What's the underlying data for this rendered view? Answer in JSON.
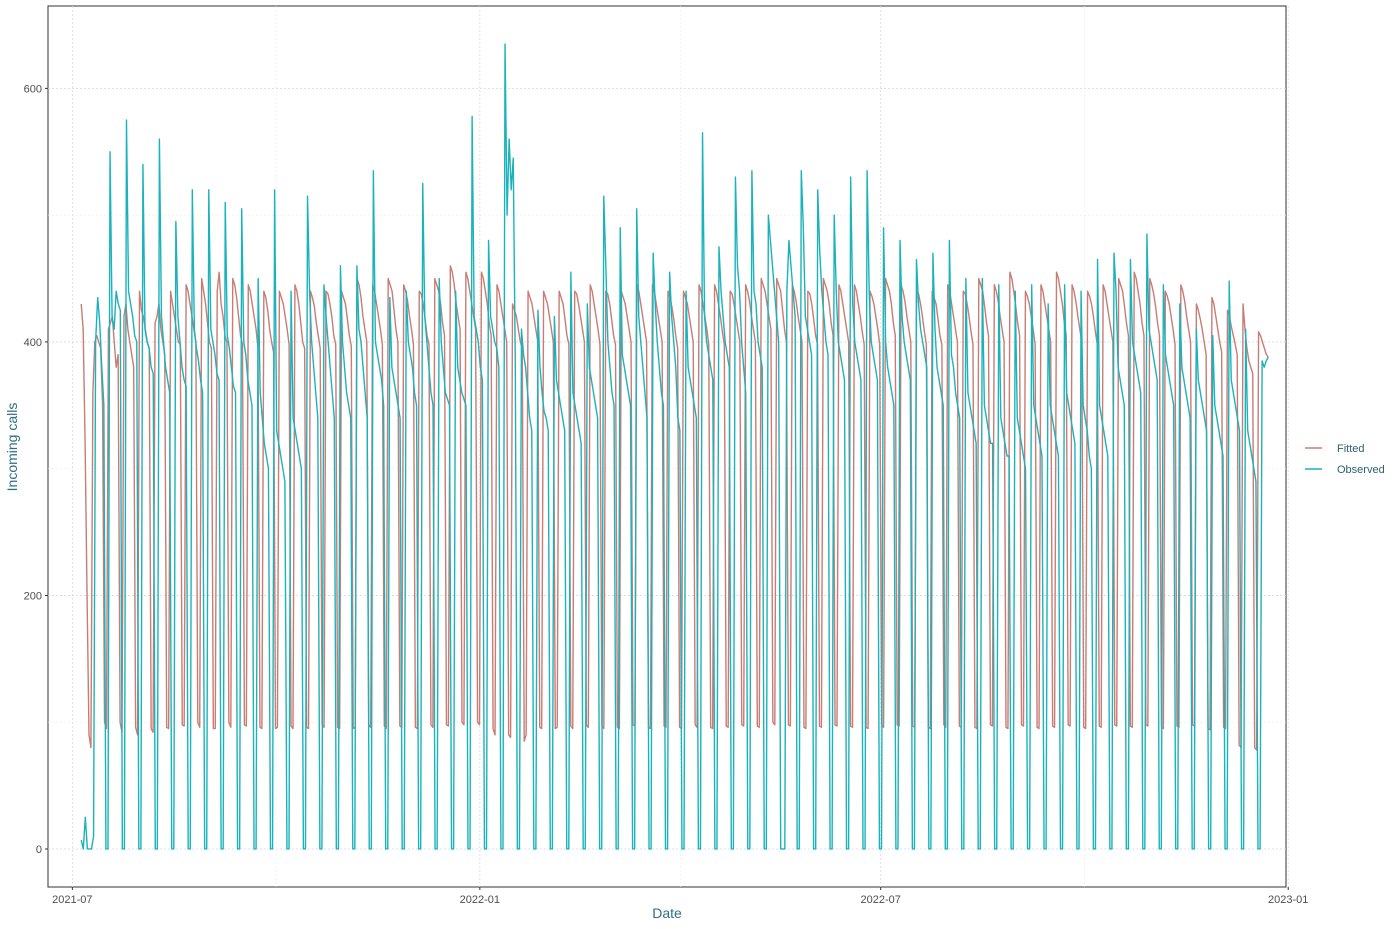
{
  "chart_data": {
    "type": "line",
    "title": "",
    "xlabel": "Date",
    "ylabel": "Incoming calls",
    "x_range": [
      "2021-06-20",
      "2022-12-31"
    ],
    "ylim": [
      -30,
      665
    ],
    "x_ticks": [
      {
        "date": "2021-07-01",
        "label": "2021-07"
      },
      {
        "date": "2022-01-01",
        "label": "2022-01"
      },
      {
        "date": "2022-07-01",
        "label": "2022-07"
      },
      {
        "date": "2023-01-01",
        "label": "2023-01"
      }
    ],
    "y_ticks": [
      0,
      200,
      400,
      600
    ],
    "grid": true,
    "legend_position": "right",
    "series_start": "2021-07-05",
    "series_end": "2022-12-23",
    "series": [
      {
        "name": "Fitted",
        "color": "#c87c73",
        "values": [
          430,
          410,
          320,
          200,
          90,
          80,
          360,
          400,
          405,
          400,
          395,
          350,
          100,
          95,
          410,
          415,
          420,
          400,
          380,
          390,
          100,
          92,
          420,
          430,
          410,
          400,
          390,
          380,
          96,
          90,
          440,
          425,
          420,
          410,
          400,
          395,
          95,
          92,
          415,
          420,
          430,
          410,
          400,
          390,
          96,
          95,
          440,
          430,
          420,
          410,
          400,
          398,
          98,
          97,
          445,
          440,
          430,
          420,
          410,
          400,
          100,
          96,
          450,
          440,
          430,
          415,
          400,
          395,
          95,
          95,
          440,
          455,
          430,
          420,
          405,
          400,
          100,
          96,
          450,
          445,
          435,
          420,
          405,
          398,
          98,
          97,
          445,
          440,
          430,
          420,
          410,
          395,
          96,
          95,
          440,
          435,
          425,
          410,
          400,
          392,
          95,
          96,
          440,
          435,
          430,
          420,
          410,
          398,
          97,
          95,
          445,
          440,
          430,
          415,
          400,
          395,
          96,
          95,
          440,
          435,
          428,
          415,
          405,
          395,
          98,
          96,
          440,
          438,
          430,
          420,
          405,
          398,
          96,
          95,
          440,
          435,
          430,
          418,
          405,
          397,
          95,
          96,
          450,
          445,
          435,
          420,
          410,
          400,
          98,
          96,
          445,
          440,
          430,
          420,
          410,
          398,
          97,
          95,
          450,
          445,
          440,
          425,
          410,
          400,
          97,
          96,
          445,
          440,
          432,
          420,
          410,
          398,
          96,
          95,
          440,
          438,
          430,
          418,
          405,
          398,
          98,
          96,
          450,
          445,
          440,
          430,
          415,
          405,
          98,
          97,
          460,
          455,
          445,
          430,
          420,
          410,
          100,
          98,
          455,
          450,
          440,
          430,
          420,
          410,
          100,
          98,
          455,
          450,
          440,
          430,
          415,
          405,
          95,
          90,
          445,
          440,
          430,
          420,
          410,
          400,
          90,
          88,
          430,
          425,
          420,
          410,
          400,
          395,
          85,
          90,
          440,
          435,
          430,
          420,
          410,
          400,
          96,
          95,
          440,
          435,
          430,
          420,
          410,
          400,
          95,
          96,
          440,
          435,
          430,
          418,
          405,
          398,
          97,
          95,
          440,
          438,
          430,
          420,
          410,
          400,
          98,
          96,
          445,
          440,
          430,
          420,
          410,
          398,
          97,
          95,
          440,
          438,
          430,
          418,
          405,
          398,
          96,
          95,
          440,
          435,
          430,
          420,
          410,
          400,
          98,
          97,
          445,
          440,
          430,
          420,
          410,
          400,
          96,
          95,
          445,
          440,
          430,
          420,
          410,
          400,
          97,
          96,
          440,
          435,
          428,
          418,
          405,
          395,
          96,
          95,
          440,
          435,
          430,
          420,
          410,
          400,
          98,
          96,
          445,
          440,
          430,
          420,
          410,
          398,
          96,
          95,
          445,
          440,
          430,
          420,
          408,
          398,
          97,
          96,
          440,
          438,
          430,
          420,
          410,
          400,
          98,
          97,
          445,
          440,
          432,
          420,
          410,
          400,
          97,
          96,
          450,
          445,
          440,
          430,
          420,
          410,
          100,
          98,
          450,
          445,
          440,
          425,
          410,
          400,
          98,
          97,
          445,
          440,
          432,
          420,
          410,
          400,
          96,
          95,
          440,
          438,
          430,
          418,
          405,
          398,
          97,
          96,
          450,
          445,
          440,
          430,
          415,
          405,
          98,
          97,
          445,
          440,
          430,
          420,
          410,
          400,
          97,
          96,
          445,
          440,
          430,
          420,
          408,
          398,
          96,
          95,
          440,
          436,
          430,
          420,
          410,
          398,
          98,
          96,
          450,
          445,
          440,
          430,
          415,
          405,
          98,
          97,
          445,
          440,
          432,
          420,
          410,
          400,
          97,
          96,
          440,
          438,
          430,
          420,
          408,
          398,
          96,
          95,
          440,
          435,
          430,
          418,
          405,
          398,
          98,
          96,
          445,
          440,
          430,
          420,
          410,
          400,
          97,
          96,
          440,
          438,
          430,
          420,
          408,
          398,
          96,
          95,
          450,
          445,
          440,
          428,
          415,
          405,
          98,
          97,
          445,
          440,
          432,
          420,
          410,
          400,
          96,
          95,
          455,
          450,
          440,
          428,
          415,
          405,
          98,
          97,
          440,
          436,
          430,
          420,
          410,
          398,
          96,
          95,
          445,
          440,
          430,
          420,
          410,
          400,
          97,
          96,
          455,
          450,
          440,
          430,
          415,
          405,
          98,
          97,
          445,
          440,
          432,
          420,
          410,
          400,
          96,
          95,
          440,
          436,
          430,
          420,
          408,
          398,
          97,
          96,
          445,
          440,
          430,
          420,
          410,
          400,
          98,
          97,
          450,
          445,
          440,
          428,
          415,
          405,
          97,
          96,
          455,
          450,
          440,
          430,
          415,
          405,
          98,
          97,
          450,
          445,
          438,
          428,
          415,
          405,
          96,
          95,
          440,
          436,
          430,
          420,
          410,
          398,
          97,
          96,
          445,
          440,
          432,
          420,
          410,
          400,
          98,
          97,
          430,
          425,
          418,
          410,
          400,
          390,
          95,
          94,
          435,
          430,
          420,
          410,
          400,
          392,
          96,
          95,
          425,
          420,
          412,
          405,
          398,
          390,
          82,
          80,
          430,
          410,
          395,
          385,
          380,
          375,
          80,
          78,
          408,
          405,
          400,
          395,
          390,
          388
        ]
      },
      {
        "name": "Observed",
        "color": "#1ab3bc",
        "values": [
          7,
          0,
          25,
          0,
          0,
          0,
          10,
          400,
          435,
          415,
          380,
          350,
          0,
          0,
          550,
          420,
          410,
          440,
          430,
          425,
          0,
          0,
          575,
          440,
          430,
          420,
          405,
          400,
          0,
          0,
          540,
          410,
          400,
          395,
          380,
          375,
          0,
          0,
          560,
          420,
          400,
          380,
          370,
          360,
          0,
          0,
          495,
          420,
          400,
          380,
          370,
          365,
          0,
          0,
          520,
          410,
          395,
          385,
          370,
          360,
          0,
          0,
          520,
          410,
          400,
          390,
          375,
          370,
          0,
          0,
          510,
          405,
          395,
          380,
          365,
          360,
          0,
          0,
          505,
          400,
          390,
          370,
          360,
          350,
          0,
          0,
          450,
          360,
          340,
          320,
          310,
          300,
          0,
          0,
          520,
          330,
          320,
          310,
          300,
          290,
          0,
          0,
          440,
          340,
          330,
          320,
          310,
          300,
          0,
          0,
          515,
          440,
          400,
          380,
          360,
          340,
          0,
          0,
          445,
          420,
          400,
          380,
          360,
          340,
          0,
          0,
          460,
          400,
          380,
          360,
          350,
          340,
          0,
          0,
          460,
          410,
          400,
          380,
          360,
          340,
          0,
          0,
          535,
          400,
          390,
          380,
          370,
          350,
          0,
          0,
          435,
          380,
          370,
          360,
          350,
          340,
          0,
          0,
          440,
          400,
          390,
          380,
          360,
          350,
          0,
          0,
          525,
          420,
          400,
          380,
          360,
          350,
          0,
          0,
          450,
          400,
          380,
          360,
          355,
          350,
          0,
          0,
          440,
          380,
          370,
          360,
          355,
          350,
          0,
          0,
          578,
          420,
          410,
          400,
          380,
          370,
          0,
          0,
          480,
          420,
          410,
          400,
          395,
          380,
          0,
          0,
          635,
          500,
          560,
          520,
          545,
          380,
          0,
          0,
          410,
          390,
          380,
          360,
          340,
          330,
          0,
          0,
          425,
          380,
          360,
          345,
          340,
          330,
          0,
          0,
          420,
          370,
          360,
          350,
          340,
          330,
          0,
          0,
          455,
          360,
          350,
          340,
          330,
          320,
          0,
          0,
          430,
          380,
          370,
          360,
          350,
          340,
          0,
          0,
          515,
          460,
          400,
          380,
          360,
          350,
          0,
          0,
          490,
          390,
          380,
          370,
          360,
          350,
          0,
          0,
          505,
          420,
          400,
          380,
          360,
          340,
          0,
          0,
          470,
          430,
          400,
          380,
          360,
          350,
          0,
          0,
          455,
          420,
          400,
          380,
          340,
          330,
          0,
          0,
          440,
          380,
          370,
          360,
          350,
          340,
          0,
          0,
          565,
          420,
          400,
          390,
          380,
          370,
          0,
          0,
          475,
          440,
          420,
          400,
          390,
          380,
          0,
          0,
          530,
          460,
          440,
          400,
          380,
          360,
          0,
          0,
          535,
          440,
          430,
          400,
          390,
          380,
          0,
          0,
          500,
          480,
          460,
          440,
          420,
          400,
          0,
          0,
          0,
          440,
          480,
          460,
          440,
          420,
          0,
          0,
          535,
          490,
          420,
          410,
          400,
          390,
          0,
          0,
          520,
          470,
          440,
          420,
          400,
          390,
          0,
          0,
          500,
          440,
          400,
          390,
          380,
          370,
          0,
          0,
          530,
          430,
          400,
          390,
          380,
          370,
          0,
          0,
          535,
          440,
          400,
          390,
          380,
          370,
          0,
          0,
          490,
          400,
          380,
          370,
          360,
          350,
          0,
          0,
          480,
          420,
          400,
          390,
          380,
          370,
          0,
          0,
          465,
          430,
          410,
          400,
          390,
          380,
          0,
          0,
          470,
          410,
          380,
          370,
          360,
          350,
          0,
          0,
          480,
          390,
          380,
          360,
          350,
          340,
          0,
          0,
          450,
          360,
          350,
          340,
          330,
          320,
          0,
          0,
          450,
          350,
          340,
          330,
          320,
          320,
          0,
          0,
          445,
          340,
          330,
          320,
          310,
          310,
          0,
          0,
          440,
          340,
          330,
          320,
          310,
          300,
          0,
          0,
          445,
          350,
          340,
          330,
          320,
          310,
          0,
          0,
          430,
          350,
          340,
          330,
          320,
          310,
          0,
          0,
          445,
          360,
          350,
          340,
          330,
          320,
          0,
          0,
          440,
          350,
          340,
          330,
          310,
          300,
          0,
          0,
          465,
          350,
          340,
          330,
          320,
          310,
          0,
          0,
          470,
          440,
          380,
          370,
          360,
          350,
          0,
          0,
          465,
          400,
          390,
          380,
          370,
          360,
          0,
          0,
          485,
          410,
          400,
          390,
          380,
          370,
          0,
          0,
          445,
          390,
          380,
          370,
          360,
          350,
          0,
          0,
          430,
          380,
          370,
          360,
          350,
          340,
          0,
          0,
          410,
          370,
          360,
          350,
          340,
          330,
          0,
          0,
          405,
          350,
          340,
          330,
          320,
          310,
          0,
          0,
          448,
          370,
          360,
          350,
          340,
          330,
          0,
          0,
          410,
          330,
          320,
          310,
          300,
          290,
          0,
          0,
          385,
          380,
          385,
          388
        ]
      }
    ]
  }
}
